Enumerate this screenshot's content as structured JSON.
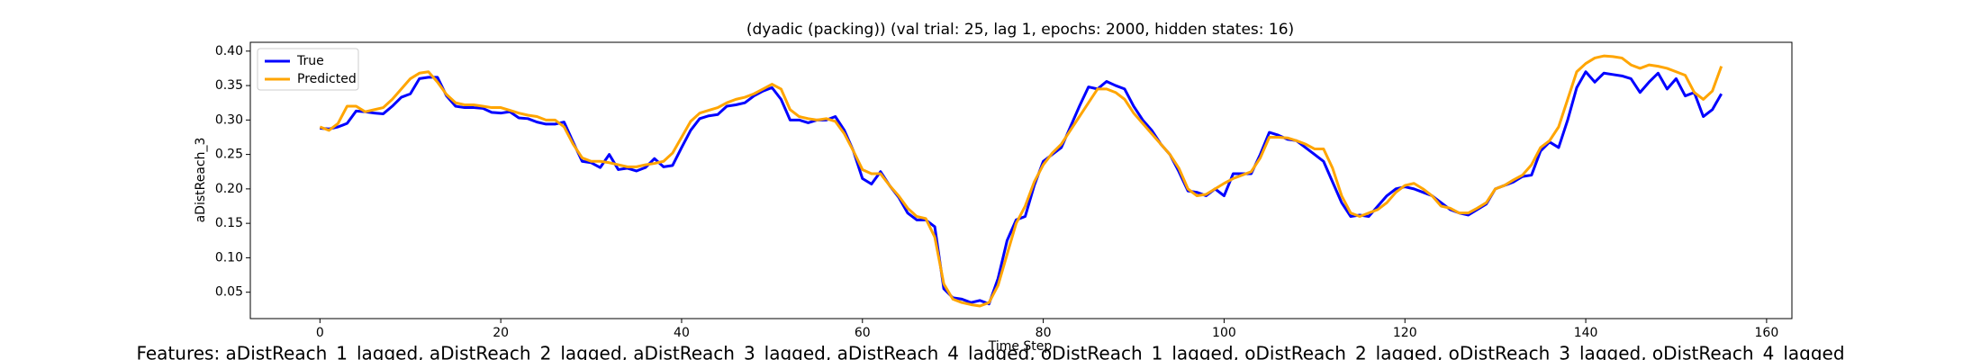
{
  "chart_data": {
    "type": "line",
    "title": "(dyadic (packing)) (val trial: 25, lag 1, epochs: 2000, hidden states: 16)",
    "x_label": "Time Step",
    "y_label": "aDistReach_3",
    "footer": "Features: aDistReach_1_lagged, aDistReach_2_lagged, aDistReach_3_lagged, aDistReach_4_lagged, oDistReach_1_lagged, oDistReach_2_lagged, oDistReach_3_lagged, oDistReach_4_lagged",
    "x": [
      0,
      1,
      2,
      3,
      4,
      5,
      6,
      7,
      8,
      9,
      10,
      11,
      12,
      13,
      14,
      15,
      16,
      17,
      18,
      19,
      20,
      21,
      22,
      23,
      24,
      25,
      26,
      27,
      28,
      29,
      30,
      31,
      32,
      33,
      34,
      35,
      36,
      37,
      38,
      39,
      40,
      41,
      42,
      43,
      44,
      45,
      46,
      47,
      48,
      49,
      50,
      51,
      52,
      53,
      54,
      55,
      56,
      57,
      58,
      59,
      60,
      61,
      62,
      63,
      64,
      65,
      66,
      67,
      68,
      69,
      70,
      71,
      72,
      73,
      74,
      75,
      76,
      77,
      78,
      79,
      80,
      81,
      82,
      83,
      84,
      85,
      86,
      87,
      88,
      89,
      90,
      91,
      92,
      93,
      94,
      95,
      96,
      97,
      98,
      99,
      100,
      101,
      102,
      103,
      104,
      105,
      106,
      107,
      108,
      109,
      110,
      111,
      112,
      113,
      114,
      115,
      116,
      117,
      118,
      119,
      120,
      121,
      122,
      123,
      124,
      125,
      126,
      127,
      128,
      129,
      130,
      131,
      132,
      133,
      134,
      135,
      136,
      137,
      138,
      139,
      140,
      141,
      142,
      143,
      144,
      145,
      146,
      147,
      148,
      149,
      150,
      151,
      152,
      153,
      154,
      155
    ],
    "series": [
      {
        "name": "True",
        "color": "#0000ff",
        "values": [
          0.288,
          0.287,
          0.29,
          0.295,
          0.313,
          0.312,
          0.31,
          0.309,
          0.32,
          0.333,
          0.338,
          0.36,
          0.362,
          0.362,
          0.335,
          0.32,
          0.318,
          0.318,
          0.317,
          0.311,
          0.31,
          0.312,
          0.303,
          0.302,
          0.297,
          0.294,
          0.294,
          0.297,
          0.268,
          0.24,
          0.238,
          0.231,
          0.25,
          0.228,
          0.23,
          0.226,
          0.231,
          0.244,
          0.232,
          0.234,
          0.26,
          0.285,
          0.302,
          0.306,
          0.308,
          0.32,
          0.322,
          0.325,
          0.335,
          0.342,
          0.347,
          0.33,
          0.3,
          0.3,
          0.296,
          0.3,
          0.3,
          0.305,
          0.285,
          0.255,
          0.215,
          0.207,
          0.225,
          0.205,
          0.188,
          0.165,
          0.155,
          0.155,
          0.145,
          0.055,
          0.042,
          0.04,
          0.035,
          0.038,
          0.033,
          0.07,
          0.125,
          0.155,
          0.16,
          0.205,
          0.24,
          0.25,
          0.26,
          0.29,
          0.32,
          0.348,
          0.345,
          0.356,
          0.35,
          0.345,
          0.32,
          0.3,
          0.285,
          0.265,
          0.25,
          0.225,
          0.197,
          0.195,
          0.19,
          0.2,
          0.19,
          0.222,
          0.222,
          0.222,
          0.25,
          0.282,
          0.278,
          0.272,
          0.27,
          0.26,
          0.25,
          0.24,
          0.21,
          0.18,
          0.16,
          0.162,
          0.16,
          0.175,
          0.19,
          0.2,
          0.203,
          0.2,
          0.195,
          0.19,
          0.18,
          0.17,
          0.165,
          0.162,
          0.17,
          0.178,
          0.2,
          0.205,
          0.21,
          0.218,
          0.22,
          0.255,
          0.268,
          0.26,
          0.3,
          0.347,
          0.37,
          0.355,
          0.368,
          0.366,
          0.364,
          0.36,
          0.34,
          0.355,
          0.368,
          0.345,
          0.36,
          0.335,
          0.34,
          0.305,
          0.315,
          0.338
        ]
      },
      {
        "name": "Predicted",
        "color": "#ffa500",
        "values": [
          0.29,
          0.285,
          0.295,
          0.32,
          0.32,
          0.312,
          0.315,
          0.318,
          0.33,
          0.345,
          0.36,
          0.368,
          0.37,
          0.355,
          0.337,
          0.325,
          0.322,
          0.322,
          0.32,
          0.318,
          0.318,
          0.314,
          0.31,
          0.307,
          0.305,
          0.3,
          0.3,
          0.29,
          0.265,
          0.245,
          0.24,
          0.24,
          0.238,
          0.235,
          0.232,
          0.232,
          0.235,
          0.237,
          0.24,
          0.252,
          0.275,
          0.298,
          0.31,
          0.314,
          0.318,
          0.325,
          0.33,
          0.333,
          0.338,
          0.345,
          0.352,
          0.345,
          0.315,
          0.305,
          0.302,
          0.3,
          0.302,
          0.298,
          0.28,
          0.255,
          0.228,
          0.222,
          0.222,
          0.205,
          0.19,
          0.172,
          0.16,
          0.157,
          0.13,
          0.062,
          0.04,
          0.035,
          0.032,
          0.03,
          0.035,
          0.06,
          0.105,
          0.15,
          0.175,
          0.21,
          0.235,
          0.252,
          0.265,
          0.285,
          0.305,
          0.325,
          0.345,
          0.345,
          0.34,
          0.33,
          0.31,
          0.295,
          0.28,
          0.265,
          0.25,
          0.23,
          0.2,
          0.19,
          0.192,
          0.2,
          0.208,
          0.215,
          0.22,
          0.225,
          0.245,
          0.275,
          0.275,
          0.274,
          0.27,
          0.265,
          0.258,
          0.258,
          0.23,
          0.19,
          0.165,
          0.16,
          0.165,
          0.17,
          0.18,
          0.195,
          0.205,
          0.208,
          0.2,
          0.19,
          0.175,
          0.172,
          0.165,
          0.165,
          0.172,
          0.18,
          0.2,
          0.205,
          0.213,
          0.22,
          0.235,
          0.26,
          0.27,
          0.29,
          0.33,
          0.37,
          0.382,
          0.39,
          0.393,
          0.392,
          0.39,
          0.38,
          0.375,
          0.38,
          0.378,
          0.375,
          0.37,
          0.365,
          0.34,
          0.33,
          0.342,
          0.378
        ]
      }
    ],
    "xlim": [
      -7.7,
      162.8
    ],
    "xticks": [
      0,
      20,
      40,
      60,
      80,
      100,
      120,
      140,
      160
    ],
    "ylim": [
      0.0117,
      0.4128
    ],
    "yticks": [
      {
        "value": 0.05,
        "label": "0.05"
      },
      {
        "value": 0.1,
        "label": "0.10"
      },
      {
        "value": 0.15,
        "label": "0.15"
      },
      {
        "value": 0.2,
        "label": "0.20"
      },
      {
        "value": 0.25,
        "label": "0.25"
      },
      {
        "value": 0.3,
        "label": "0.30"
      },
      {
        "value": 0.35,
        "label": "0.35"
      },
      {
        "value": 0.4,
        "label": "0.40"
      }
    ],
    "legend": "upper left",
    "grid": false
  }
}
